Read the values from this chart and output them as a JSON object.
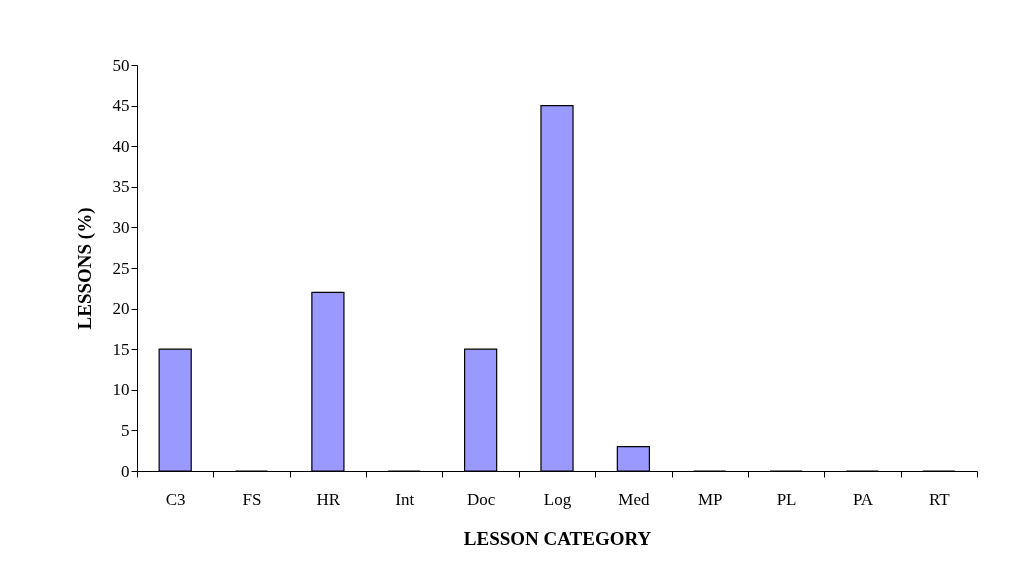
{
  "chart_data": {
    "type": "bar",
    "xlabel": "LESSON CATEGORY",
    "ylabel": "LESSONS (%)",
    "categories": [
      "C3",
      "FS",
      "HR",
      "Int",
      "Doc",
      "Log",
      "Med",
      "MP",
      "PL",
      "PA",
      "RT"
    ],
    "values": [
      15,
      0,
      22,
      0,
      15,
      45,
      3,
      0,
      0,
      0,
      0
    ],
    "color": "#9999ff",
    "ylim": [
      0,
      50
    ],
    "yticks": [
      0,
      5,
      10,
      15,
      20,
      25,
      30,
      35,
      40,
      45,
      50
    ],
    "grid": false
  }
}
